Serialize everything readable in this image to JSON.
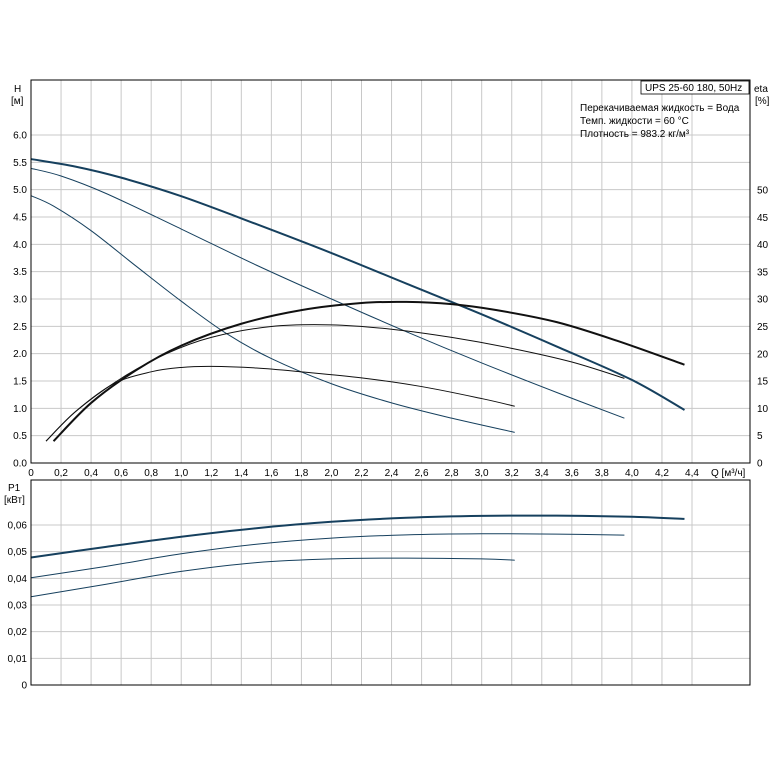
{
  "chart_data": [
    {
      "type": "line",
      "name": "head-efficiency",
      "xlabel": "Q [м³/ч]",
      "ylabel_left": "H",
      "ylabel_left_unit": "[м]",
      "ylabel_right": "eta",
      "ylabel_right_unit": "[%]",
      "xlim": [
        0,
        4.4
      ],
      "ylim_left": [
        0,
        6.0
      ],
      "ylim_right": [
        0,
        50
      ],
      "grid": true,
      "x_ticks": [
        "0",
        "0,2",
        "0,4",
        "0,6",
        "0,8",
        "1,0",
        "1,2",
        "1,4",
        "1,6",
        "1,8",
        "2,0",
        "2,2",
        "2,4",
        "2,6",
        "2,8",
        "3,0",
        "3,2",
        "3,4",
        "3,6",
        "3,8",
        "4,0",
        "4,2",
        "4,4"
      ],
      "y_ticks_left": [
        "0.0",
        "0.5",
        "1.0",
        "1.5",
        "2.0",
        "2.5",
        "3.0",
        "3.5",
        "4.0",
        "4.5",
        "5.0",
        "5.5",
        "6.0"
      ],
      "y_ticks_right": [
        "0",
        "5",
        "10",
        "15",
        "20",
        "25",
        "30",
        "35",
        "40",
        "45",
        "50"
      ],
      "info_title": "UPS 25-60 180, 50Hz",
      "info_lines": [
        "Перекачиваемая жидкость = Вода",
        "Темп. жидкости = 60 °C",
        "Плотность = 983.2 кг/м³"
      ],
      "head_series": [
        {
          "width": 2.0,
          "x": [
            0,
            0.3,
            0.6,
            1.0,
            1.5,
            2.0,
            2.5,
            3.0,
            3.5,
            4.0,
            4.35
          ],
          "y": [
            5.56,
            5.42,
            5.22,
            4.88,
            4.37,
            3.84,
            3.28,
            2.72,
            2.13,
            1.52,
            0.97
          ]
        },
        {
          "width": 1.0,
          "x": [
            0,
            0.2,
            0.5,
            1.0,
            1.5,
            2.0,
            2.5,
            3.0,
            3.5,
            3.95
          ],
          "y": [
            5.39,
            5.25,
            4.93,
            4.28,
            3.62,
            3.0,
            2.4,
            1.83,
            1.29,
            0.82
          ]
        },
        {
          "width": 1.0,
          "x": [
            0,
            0.15,
            0.4,
            0.7,
            1.0,
            1.3,
            1.6,
            2.0,
            2.4,
            2.8,
            3.22
          ],
          "y": [
            4.89,
            4.7,
            4.25,
            3.6,
            2.96,
            2.37,
            1.91,
            1.45,
            1.1,
            0.82,
            0.56
          ]
        }
      ],
      "eta_series": [
        {
          "width": 2.0,
          "x": [
            0.15,
            0.4,
            0.7,
            1.0,
            1.4,
            1.8,
            2.2,
            2.5,
            2.8,
            3.1,
            3.5,
            3.9,
            4.35
          ],
          "y": [
            4.0,
            11.0,
            17.0,
            21.5,
            25.5,
            28.0,
            29.3,
            29.5,
            29.1,
            28.0,
            25.8,
            22.4,
            18.0
          ]
        },
        {
          "width": 1.0,
          "x": [
            0.1,
            0.3,
            0.6,
            0.9,
            1.2,
            1.6,
            2.0,
            2.4,
            2.8,
            3.2,
            3.6,
            3.95
          ],
          "y": [
            4.0,
            9.5,
            15.5,
            20.0,
            23.0,
            25.0,
            25.3,
            24.5,
            23.0,
            21.0,
            18.5,
            15.5
          ]
        },
        {
          "width": 1.0,
          "x": [
            0.1,
            0.3,
            0.55,
            0.8,
            1.0,
            1.2,
            1.5,
            1.8,
            2.2,
            2.6,
            3.0,
            3.22
          ],
          "y": [
            4.0,
            9.5,
            14.5,
            16.7,
            17.5,
            17.7,
            17.4,
            16.7,
            15.6,
            14.0,
            11.8,
            10.4
          ]
        }
      ]
    },
    {
      "type": "line",
      "name": "power",
      "xlabel": "",
      "ylabel": "P1",
      "ylabel_unit": "[кВт]",
      "xlim": [
        0,
        4.4
      ],
      "ylim": [
        0,
        0.07
      ],
      "grid": true,
      "y_ticks": [
        "0",
        "0,01",
        "0,02",
        "0,03",
        "0,04",
        "0,05",
        "0,06"
      ],
      "series": [
        {
          "width": 2.0,
          "x": [
            0,
            0.5,
            1.0,
            1.5,
            2.0,
            2.5,
            3.0,
            3.5,
            4.0,
            4.35
          ],
          "y": [
            0.0478,
            0.0518,
            0.0556,
            0.0588,
            0.0612,
            0.0627,
            0.0634,
            0.0635,
            0.0631,
            0.0623
          ]
        },
        {
          "width": 1.0,
          "x": [
            0,
            0.5,
            1.0,
            1.5,
            2.0,
            2.5,
            3.0,
            3.5,
            3.95
          ],
          "y": [
            0.0402,
            0.0445,
            0.0492,
            0.0528,
            0.0551,
            0.0563,
            0.0567,
            0.0566,
            0.0562
          ]
        },
        {
          "width": 1.0,
          "x": [
            0,
            0.5,
            1.0,
            1.5,
            2.0,
            2.5,
            3.0,
            3.22
          ],
          "y": [
            0.0331,
            0.0378,
            0.0426,
            0.0459,
            0.0473,
            0.0476,
            0.0473,
            0.0468
          ]
        }
      ]
    }
  ]
}
